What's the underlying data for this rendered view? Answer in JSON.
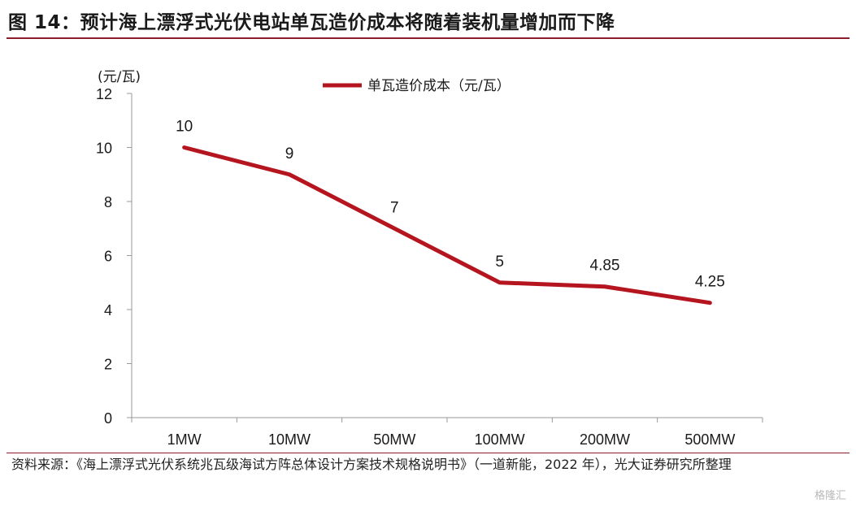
{
  "header": {
    "title": "图 14：预计海上漂浮式光伏电站单瓦造价成本将随着装机量增加而下降"
  },
  "footer": {
    "source": "资料来源：《海上漂浮式光伏系统兆瓦级海试方阵总体设计方案技术规格说明书》（一道新能，2022 年），光大证券研究所整理",
    "watermark": "格隆汇"
  },
  "chart_data": {
    "type": "line",
    "title": "",
    "xlabel": "",
    "ylabel": "(元/瓦)",
    "categories": [
      "1MW",
      "10MW",
      "50MW",
      "100MW",
      "200MW",
      "500MW"
    ],
    "series": [
      {
        "name": "单瓦造价成本（元/瓦）",
        "values": [
          10,
          9,
          7,
          5,
          4.85,
          4.25
        ],
        "labels": [
          "10",
          "9",
          "7",
          "5",
          "4.85",
          "4.25"
        ],
        "color": "#b5151e"
      }
    ],
    "ylim": [
      0,
      12
    ],
    "yticks": [
      0,
      2,
      4,
      6,
      8,
      10,
      12
    ],
    "grid": false,
    "legend": "top-center"
  }
}
